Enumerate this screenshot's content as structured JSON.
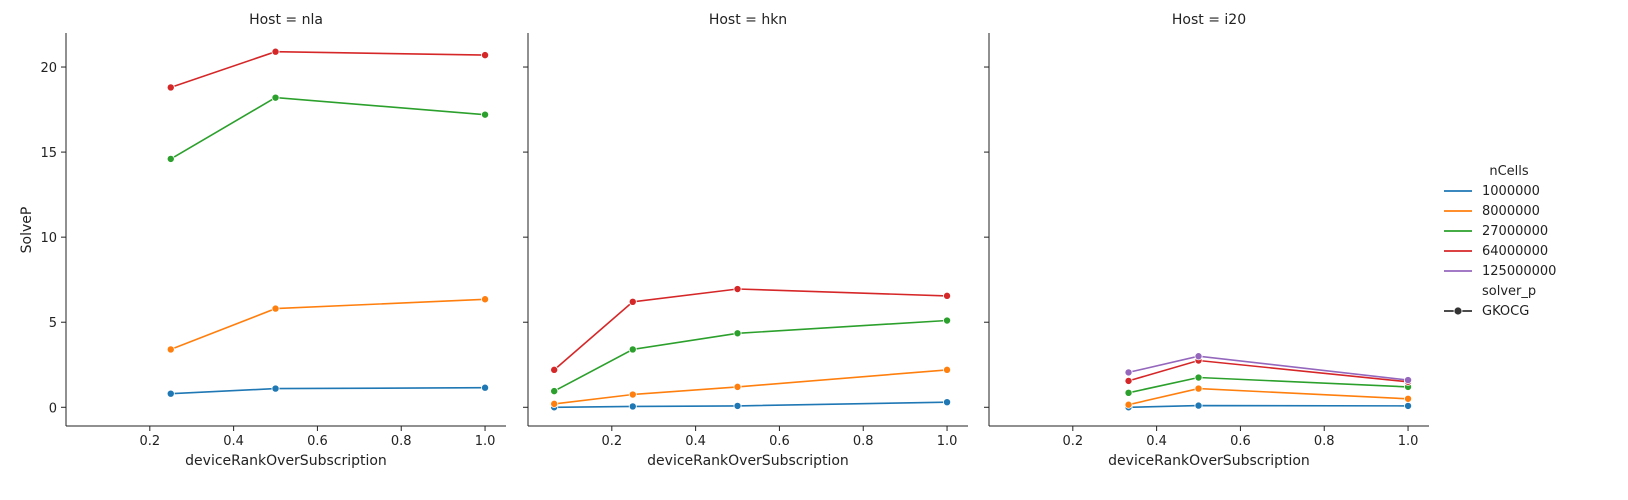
{
  "chart_data": {
    "type": "line",
    "ylabel": "SolveP",
    "xlabel": "deviceRankOverSubscription",
    "xlim": [
      0.0,
      1.05
    ],
    "ylim": [
      -1.1,
      22.0
    ],
    "xticks": [
      "0.2",
      "0.4",
      "0.6",
      "0.8",
      "1.0"
    ],
    "xtick_values": [
      0.2,
      0.4,
      0.6,
      0.8,
      1.0
    ],
    "yticks": [
      "0",
      "5",
      "10",
      "15",
      "20"
    ],
    "ytick_values": [
      0,
      5,
      10,
      15,
      20
    ],
    "grid": false,
    "legend": {
      "placement": "right",
      "title": "nCells",
      "entries": [
        "1000000",
        "8000000",
        "27000000",
        "64000000",
        "125000000"
      ],
      "style_title": "solver_p",
      "style_entries": [
        "GKOCG"
      ]
    },
    "colors": {
      "1000000": "#1f77b4",
      "8000000": "#ff7f0e",
      "27000000": "#2ca02c",
      "64000000": "#d62728",
      "125000000": "#9467bd"
    },
    "facets": [
      {
        "title": "Host = nla",
        "series": [
          {
            "name": "1000000",
            "x": [
              0.25,
              0.5,
              1.0
            ],
            "y": [
              0.8,
              1.1,
              1.15
            ]
          },
          {
            "name": "8000000",
            "x": [
              0.25,
              0.5,
              1.0
            ],
            "y": [
              3.4,
              5.8,
              6.35
            ]
          },
          {
            "name": "27000000",
            "x": [
              0.25,
              0.5,
              1.0
            ],
            "y": [
              14.6,
              18.2,
              17.2
            ]
          },
          {
            "name": "64000000",
            "x": [
              0.25,
              0.5,
              1.0
            ],
            "y": [
              18.8,
              20.9,
              20.7
            ]
          }
        ]
      },
      {
        "title": "Host = hkn",
        "series": [
          {
            "name": "1000000",
            "x": [
              0.0625,
              0.25,
              0.5,
              1.0
            ],
            "y": [
              0.0,
              0.05,
              0.08,
              0.3
            ]
          },
          {
            "name": "8000000",
            "x": [
              0.0625,
              0.25,
              0.5,
              1.0
            ],
            "y": [
              0.2,
              0.75,
              1.2,
              2.2
            ]
          },
          {
            "name": "27000000",
            "x": [
              0.0625,
              0.25,
              0.5,
              1.0
            ],
            "y": [
              0.95,
              3.4,
              4.35,
              5.1
            ]
          },
          {
            "name": "64000000",
            "x": [
              0.0625,
              0.25,
              0.5,
              1.0
            ],
            "y": [
              2.2,
              6.2,
              6.95,
              6.55
            ]
          }
        ]
      },
      {
        "title": "Host = i20",
        "series": [
          {
            "name": "1000000",
            "x": [
              0.333,
              0.5,
              1.0
            ],
            "y": [
              0.0,
              0.1,
              0.08
            ]
          },
          {
            "name": "8000000",
            "x": [
              0.333,
              0.5,
              1.0
            ],
            "y": [
              0.15,
              1.1,
              0.5
            ]
          },
          {
            "name": "27000000",
            "x": [
              0.333,
              0.5,
              1.0
            ],
            "y": [
              0.85,
              1.75,
              1.2
            ]
          },
          {
            "name": "64000000",
            "x": [
              0.333,
              0.5,
              1.0
            ],
            "y": [
              1.55,
              2.75,
              1.5
            ]
          },
          {
            "name": "125000000",
            "x": [
              0.333,
              0.5,
              1.0
            ],
            "y": [
              2.05,
              3.0,
              1.6
            ]
          }
        ]
      }
    ]
  }
}
